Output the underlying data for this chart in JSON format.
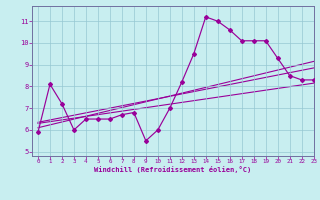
{
  "background_color": "#c8eef0",
  "line_color": "#990099",
  "xlabel": "Windchill (Refroidissement éolien,°C)",
  "xlim": [
    -0.5,
    23
  ],
  "ylim": [
    4.8,
    11.7
  ],
  "yticks": [
    5,
    6,
    7,
    8,
    9,
    10,
    11
  ],
  "xticks": [
    0,
    1,
    2,
    3,
    4,
    5,
    6,
    7,
    8,
    9,
    10,
    11,
    12,
    13,
    14,
    15,
    16,
    17,
    18,
    19,
    20,
    21,
    22,
    23
  ],
  "main_x": [
    0,
    1,
    2,
    3,
    4,
    5,
    6,
    7,
    8,
    9,
    10,
    11,
    12,
    13,
    14,
    15,
    16,
    17,
    18,
    19,
    20,
    21,
    22,
    23
  ],
  "main_y": [
    5.9,
    8.1,
    7.2,
    6.0,
    6.5,
    6.5,
    6.5,
    6.7,
    6.8,
    5.5,
    6.0,
    7.0,
    8.2,
    9.5,
    11.2,
    11.0,
    10.6,
    10.1,
    10.1,
    10.1,
    9.3,
    8.5,
    8.3,
    8.3
  ],
  "trend1_x": [
    0,
    23
  ],
  "trend1_y": [
    6.1,
    9.15
  ],
  "trend2_x": [
    0,
    23
  ],
  "trend2_y": [
    6.35,
    8.85
  ],
  "trend3_x": [
    0,
    23
  ],
  "trend3_y": [
    6.3,
    8.15
  ]
}
